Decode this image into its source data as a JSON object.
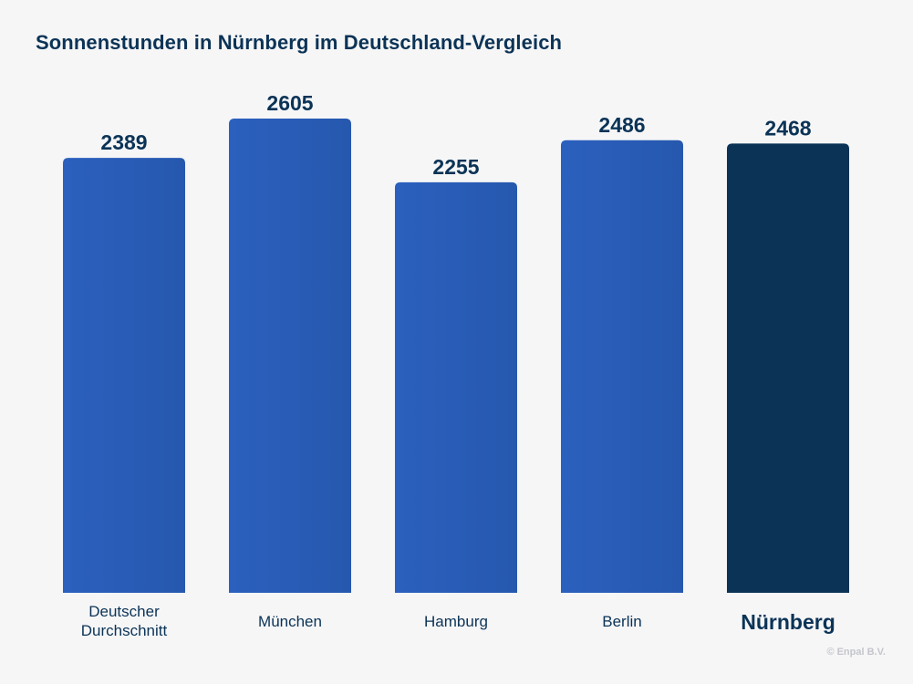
{
  "chart_data": {
    "type": "bar",
    "title": "Sonnenstunden in Nürnberg im Deutschland-Vergleich",
    "categories": [
      "Deutscher Durchschnitt",
      "München",
      "Hamburg",
      "Berlin",
      "Nürnberg"
    ],
    "category_lines": [
      [
        "Deutscher",
        "Durchschnitt"
      ],
      [
        "München"
      ],
      [
        "Hamburg"
      ],
      [
        "Berlin"
      ],
      [
        "Nürnberg"
      ]
    ],
    "values": [
      2389,
      2605,
      2255,
      2486,
      2468
    ],
    "value_labels": [
      "2389",
      "2605",
      "2255",
      "2486",
      "2468"
    ],
    "highlight_index": 4,
    "xlabel": "",
    "ylabel": "",
    "ylim": [
      0,
      2605
    ],
    "grid": false,
    "legend": "none",
    "colors": {
      "bar": "#2a5fbb",
      "highlight": "#0b3356",
      "text": "#0b3356"
    }
  },
  "credit": "© Enpal B.V."
}
